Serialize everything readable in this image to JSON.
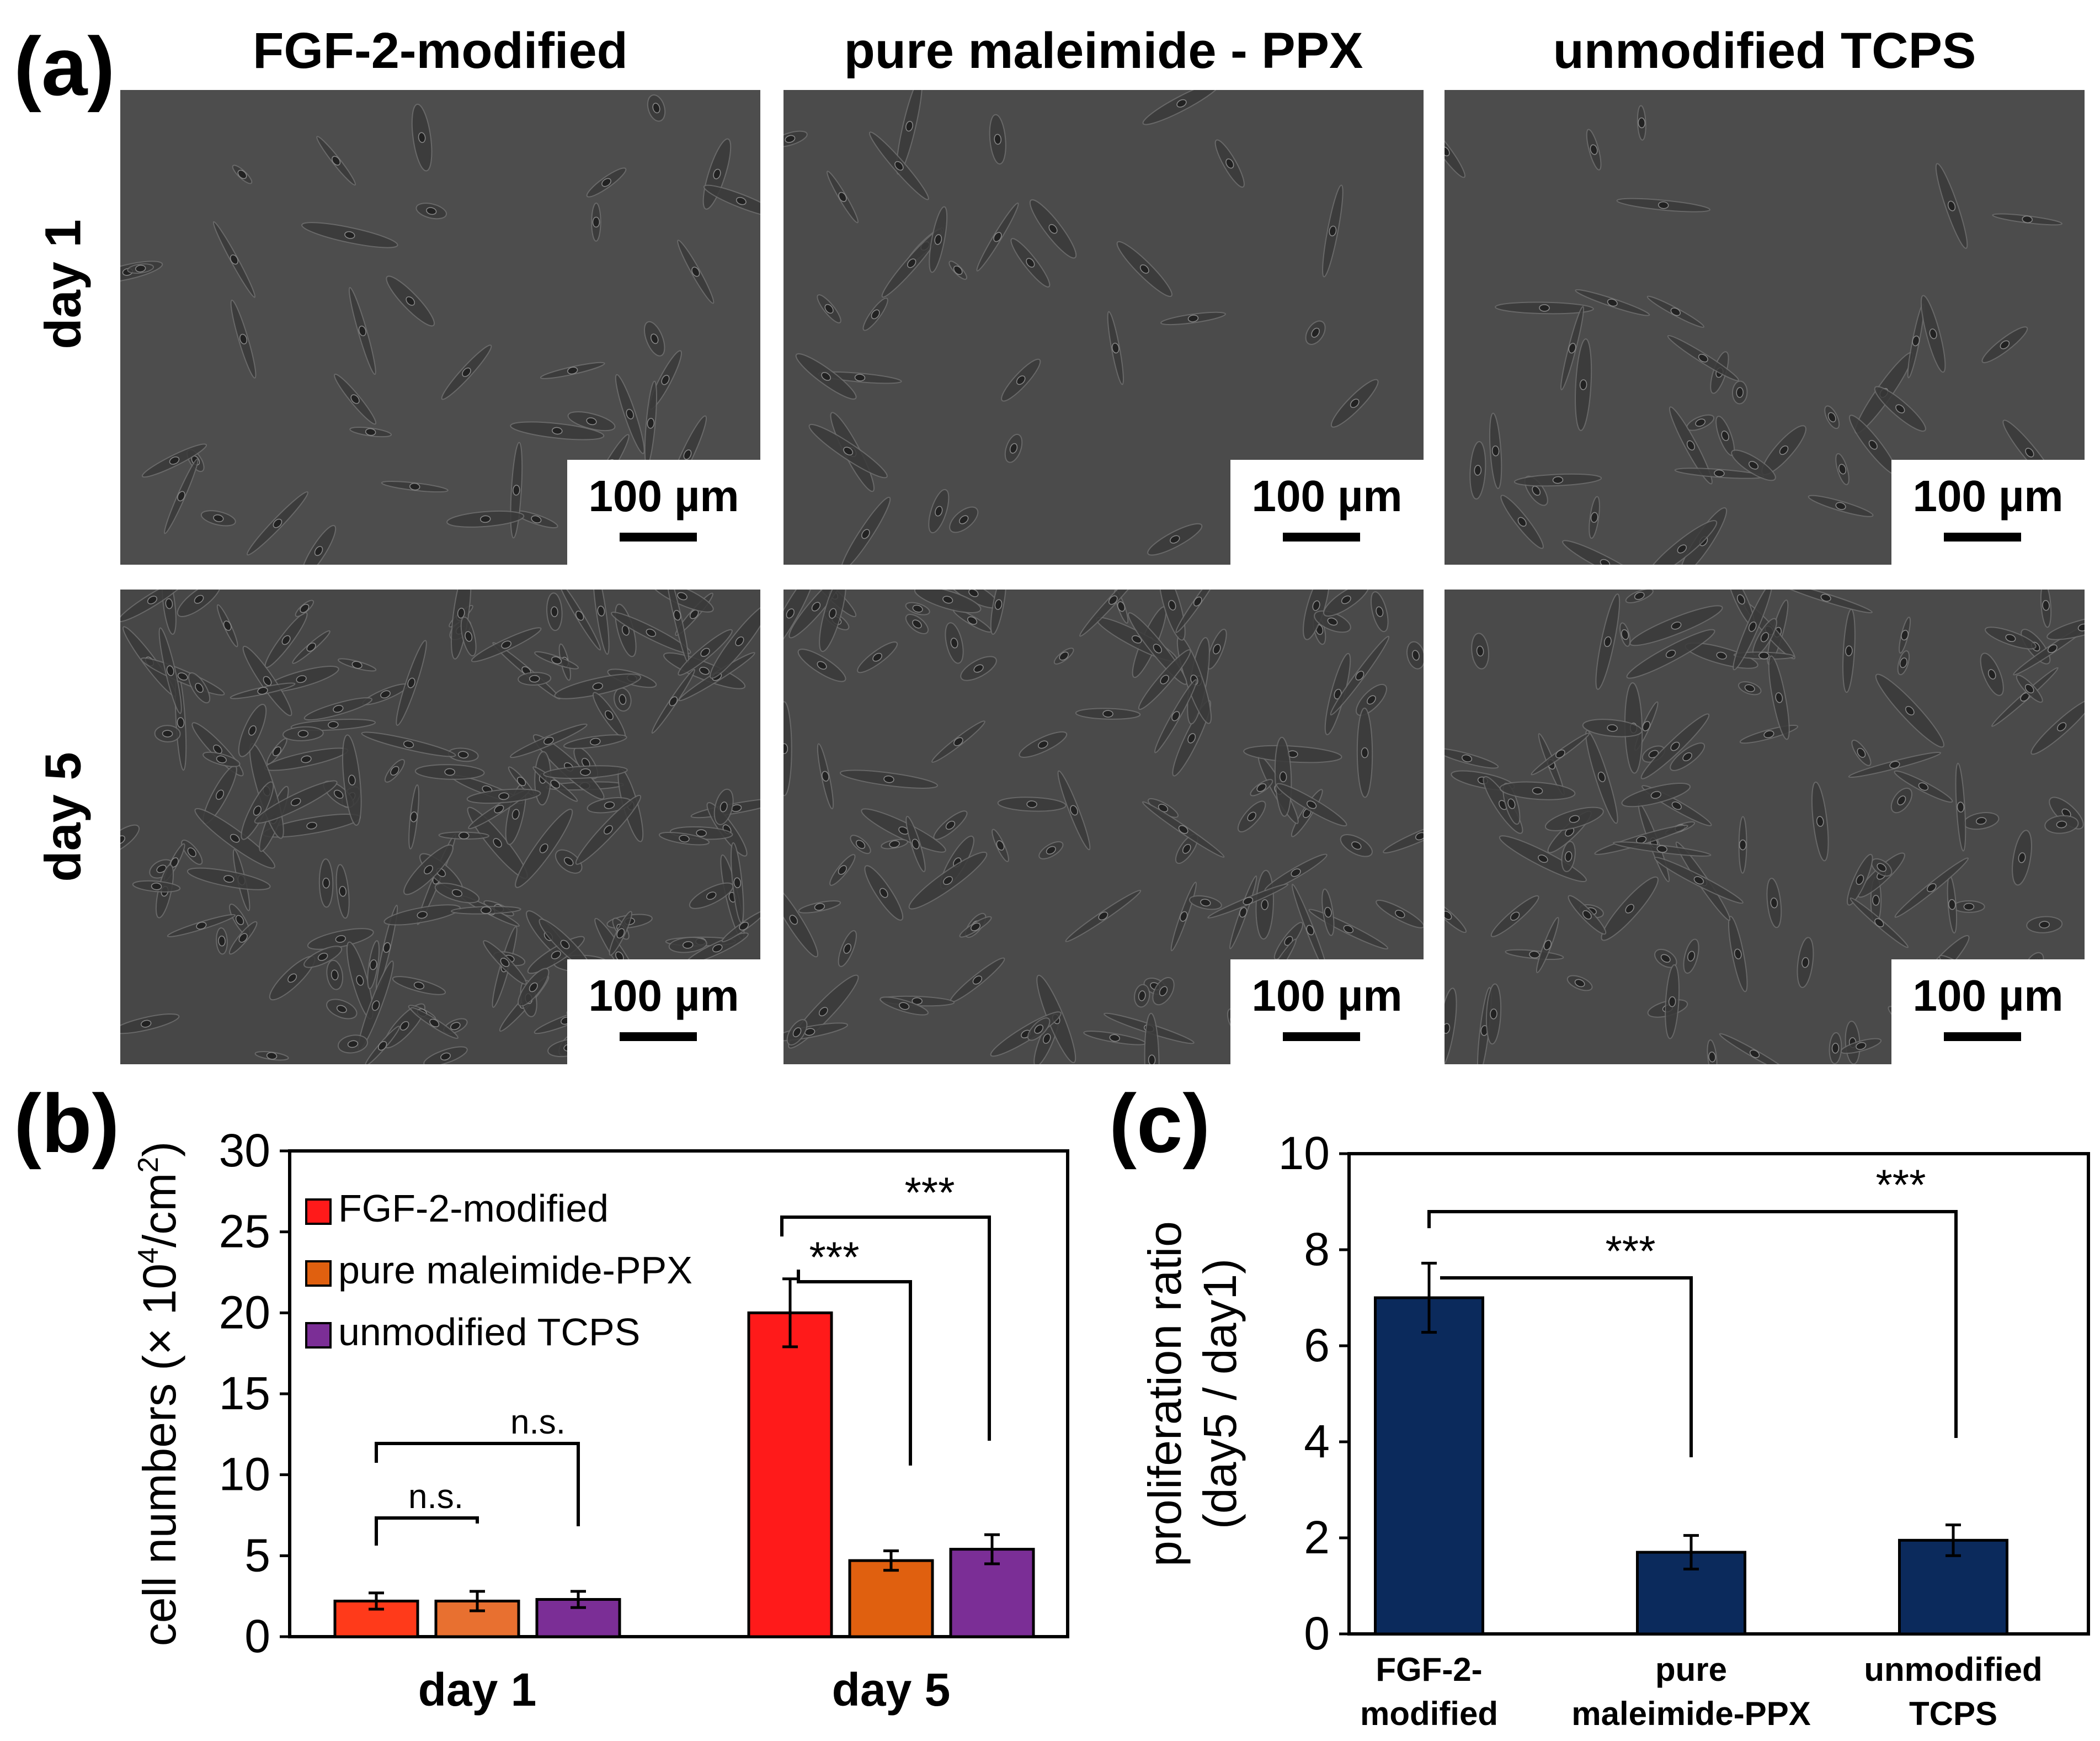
{
  "panel_a": {
    "label": "(a)",
    "columns": [
      "FGF-2-modified",
      "pure maleimide - PPX",
      "unmodified TCPS"
    ],
    "rows": [
      "day 1",
      "day 5"
    ],
    "scale_bar": "100 µm"
  },
  "panel_b": {
    "label": "(b)",
    "chart_data": {
      "type": "bar",
      "categories": [
        "day 1",
        "day 5"
      ],
      "series": [
        {
          "name": "FGF-2-modified",
          "values": [
            2.2,
            20.0
          ],
          "errors": [
            0.5,
            2.1
          ],
          "color": "#ff1a1a",
          "day1_color": "#ff3a1a"
        },
        {
          "name": "pure maleimide-PPX",
          "values": [
            2.2,
            4.7
          ],
          "errors": [
            0.6,
            0.6
          ],
          "color": "#e0600f",
          "day1_color": "#e87030"
        },
        {
          "name": "unmodified TCPS",
          "values": [
            2.3,
            5.4
          ],
          "errors": [
            0.5,
            0.9
          ],
          "color": "#7b2e96",
          "day1_color": "#7b2e96"
        }
      ],
      "title": "",
      "xlabel": "",
      "ylabel_prefix": "cell numbers (× 10",
      "ylabel_sup1": "4",
      "ylabel_mid": "/cm",
      "ylabel_sup2": "2",
      "ylabel_suffix": ")",
      "ylim": [
        0,
        30
      ],
      "yticks": [
        0,
        5,
        10,
        15,
        20,
        25,
        30
      ],
      "legend": "top-left",
      "annotations": [
        "n.s.",
        "n.s.",
        "***",
        "***"
      ]
    }
  },
  "panel_c": {
    "label": "(c)",
    "chart_data": {
      "type": "bar",
      "categories": [
        "FGF-2-\nmodified",
        "pure\nmaleimide-PPX",
        "unmodified\nTCPS"
      ],
      "values": [
        7.0,
        1.7,
        1.95
      ],
      "errors": [
        0.72,
        0.35,
        0.32
      ],
      "color": "#0b2a5c",
      "title": "",
      "xlabel": "",
      "ylabel_line1": "proliferation ratio",
      "ylabel_line2": "(day5 / day1)",
      "ylim": [
        0,
        10
      ],
      "yticks": [
        0,
        2,
        4,
        6,
        8,
        10
      ],
      "annotations": [
        "***",
        "***"
      ]
    }
  }
}
